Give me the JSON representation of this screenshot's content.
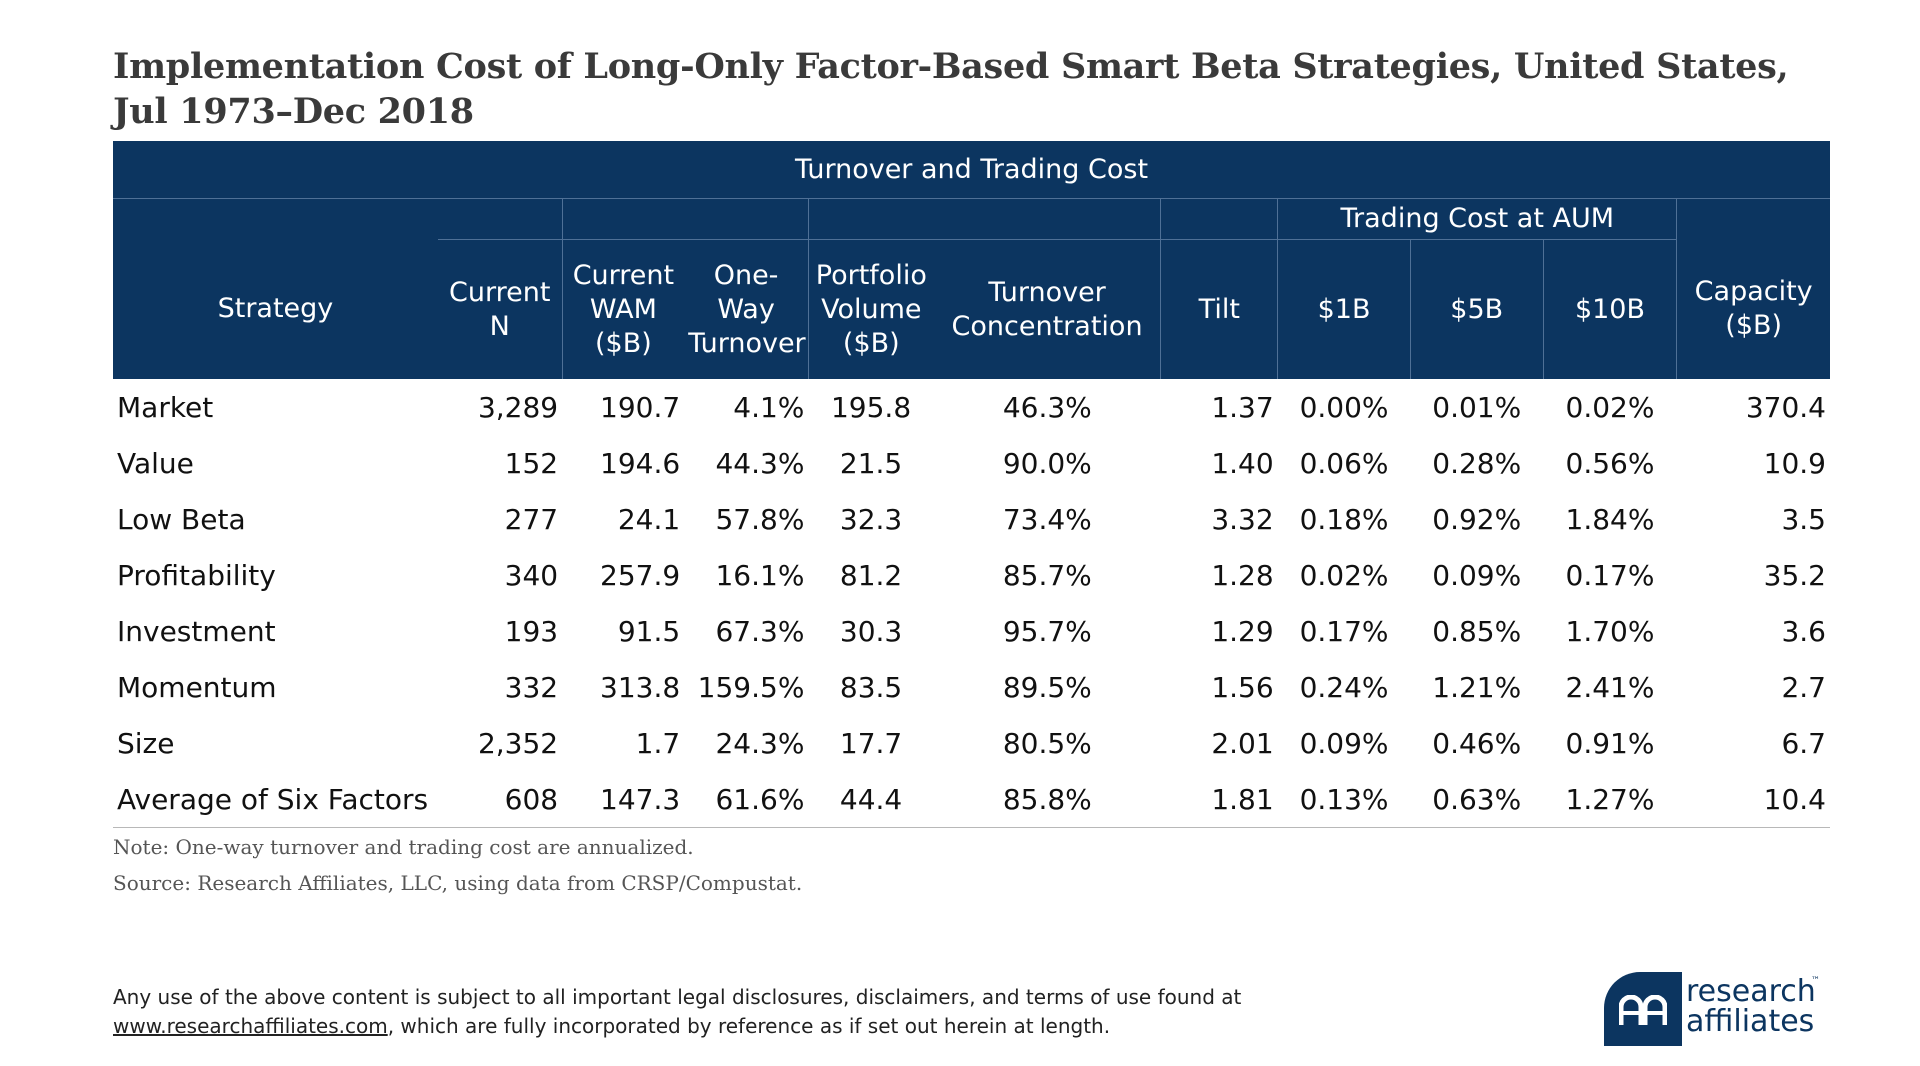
{
  "title": {
    "line1": "Implementation Cost of Long-Only Factor-Based Smart Beta Strategies, United States,",
    "line2": "Jul 1973–Dec 2018"
  },
  "header": {
    "group": "Turnover and Trading Cost",
    "subgroup": "Trading Cost at AUM",
    "columns": {
      "strategy": "Strategy",
      "current_n": "Current N",
      "current_wam": [
        "Current",
        "WAM",
        "($B)"
      ],
      "one_way_turnover": [
        "One-Way",
        "Turnover"
      ],
      "portfolio_volume": [
        "Portfolio",
        "Volume",
        "($B)"
      ],
      "turnover_concentration": [
        "Turnover",
        "Concentration"
      ],
      "tilt": "Tilt",
      "cost_1b": "$1B",
      "cost_5b": "$5B",
      "cost_10b": "$10B",
      "capacity": [
        "Capacity",
        "($B)"
      ]
    }
  },
  "rows": [
    {
      "strategy": "Market",
      "n": "3,289",
      "wam": "190.7",
      "turnover": "4.1%",
      "volume": "195.8",
      "concentration": "46.3%",
      "tilt": "1.37",
      "c1b": "0.00%",
      "c5b": "0.01%",
      "c10b": "0.02%",
      "capacity": "370.4"
    },
    {
      "strategy": "Value",
      "n": "152",
      "wam": "194.6",
      "turnover": "44.3%",
      "volume": "21.5",
      "concentration": "90.0%",
      "tilt": "1.40",
      "c1b": "0.06%",
      "c5b": "0.28%",
      "c10b": "0.56%",
      "capacity": "10.9"
    },
    {
      "strategy": "Low Beta",
      "n": "277",
      "wam": "24.1",
      "turnover": "57.8%",
      "volume": "32.3",
      "concentration": "73.4%",
      "tilt": "3.32",
      "c1b": "0.18%",
      "c5b": "0.92%",
      "c10b": "1.84%",
      "capacity": "3.5"
    },
    {
      "strategy": "Profitability",
      "n": "340",
      "wam": "257.9",
      "turnover": "16.1%",
      "volume": "81.2",
      "concentration": "85.7%",
      "tilt": "1.28",
      "c1b": "0.02%",
      "c5b": "0.09%",
      "c10b": "0.17%",
      "capacity": "35.2"
    },
    {
      "strategy": "Investment",
      "n": "193",
      "wam": "91.5",
      "turnover": "67.3%",
      "volume": "30.3",
      "concentration": "95.7%",
      "tilt": "1.29",
      "c1b": "0.17%",
      "c5b": "0.85%",
      "c10b": "1.70%",
      "capacity": "3.6"
    },
    {
      "strategy": "Momentum",
      "n": "332",
      "wam": "313.8",
      "turnover": "159.5%",
      "volume": "83.5",
      "concentration": "89.5%",
      "tilt": "1.56",
      "c1b": "0.24%",
      "c5b": "1.21%",
      "c10b": "2.41%",
      "capacity": "2.7"
    },
    {
      "strategy": "Size",
      "n": "2,352",
      "wam": "1.7",
      "turnover": "24.3%",
      "volume": "17.7",
      "concentration": "80.5%",
      "tilt": "2.01",
      "c1b": "0.09%",
      "c5b": "0.46%",
      "c10b": "0.91%",
      "capacity": "6.7"
    },
    {
      "strategy": "Average of Six Factors",
      "n": "608",
      "wam": "147.3",
      "turnover": "61.6%",
      "volume": "44.4",
      "concentration": "85.8%",
      "tilt": "1.81",
      "c1b": "0.13%",
      "c5b": "0.63%",
      "c10b": "1.27%",
      "capacity": "10.4"
    }
  ],
  "notes": {
    "note": "Note: One-way turnover and trading cost are annualized.",
    "source": "Source: Research Affiliates, LLC, using data from CRSP/Compustat."
  },
  "disclaimer": {
    "text1": "Any use of the above content is subject to all important legal disclosures, disclaimers, and terms of use found at",
    "link": "www.researchaffiliates.com",
    "text2": ", which are fully incorporated by reference as if set out herein at length."
  },
  "logo": {
    "line1": "research",
    "line2": "affiliates",
    "tm": "™",
    "brand_color": "#0c3560",
    "icon": "ra-monogram-icon"
  },
  "colors": {
    "header_bg": "#0c3560",
    "header_text": "#ffffff"
  }
}
